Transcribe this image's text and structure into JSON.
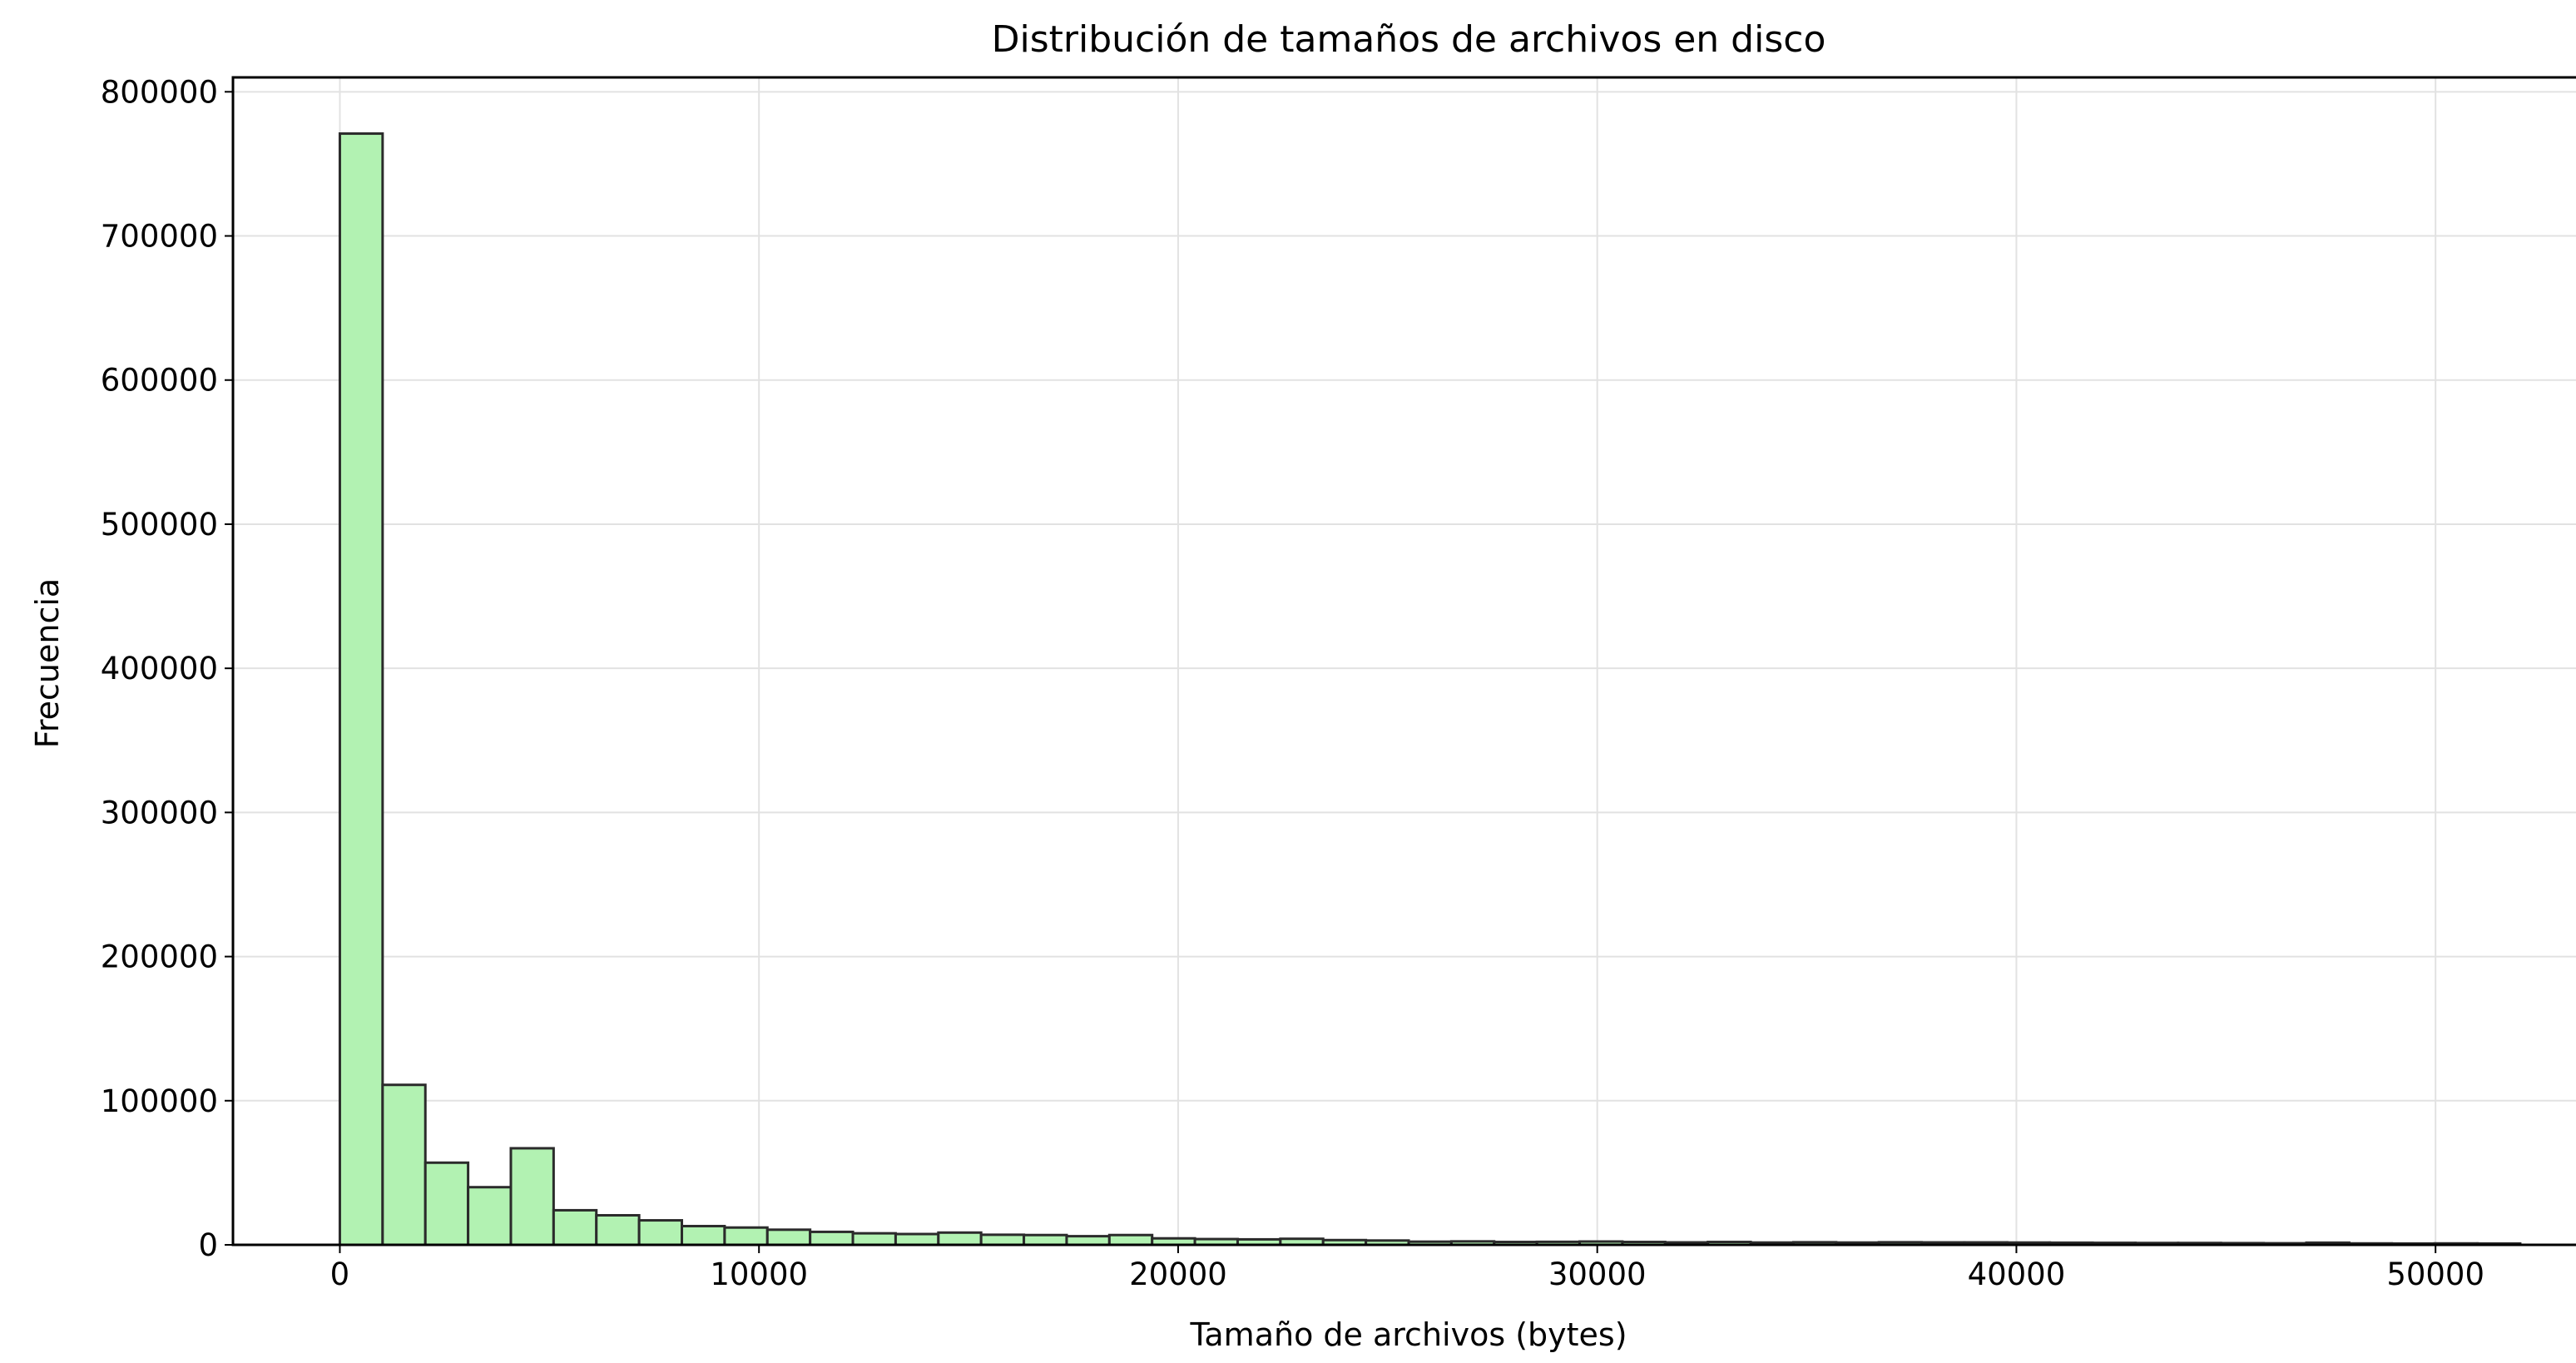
{
  "chart_data": {
    "type": "bar",
    "subtype": "histogram",
    "title": "Distribución de tamaños de archivos en disco",
    "xlabel": "Tamaño de archivos (bytes)",
    "ylabel": "Frecuencia",
    "bin_start": 0,
    "bin_width": 1020,
    "counts": [
      771000,
      111000,
      57000,
      40000,
      67000,
      24000,
      20500,
      17000,
      13000,
      12000,
      10500,
      9000,
      8000,
      7500,
      8500,
      7000,
      6800,
      6000,
      6800,
      4500,
      4000,
      3800,
      4200,
      3300,
      3000,
      2200,
      2400,
      2000,
      2100,
      2300,
      2000,
      1700,
      2000,
      1600,
      1800,
      1600,
      1800,
      1700,
      1700,
      1600,
      1500,
      1400,
      1300,
      1300,
      1200,
      1100,
      1500,
      1000,
      900,
      1000,
      900
    ],
    "xlim": [
      -2550,
      53550
    ],
    "ylim": [
      0,
      810000
    ],
    "xticks": [
      0,
      10000,
      20000,
      30000,
      40000,
      50000
    ],
    "yticks": [
      0,
      100000,
      200000,
      300000,
      400000,
      500000,
      600000,
      700000,
      800000
    ],
    "grid": true,
    "bar_color": "#b2f2b2",
    "edge_color": "#2b2b2b"
  }
}
